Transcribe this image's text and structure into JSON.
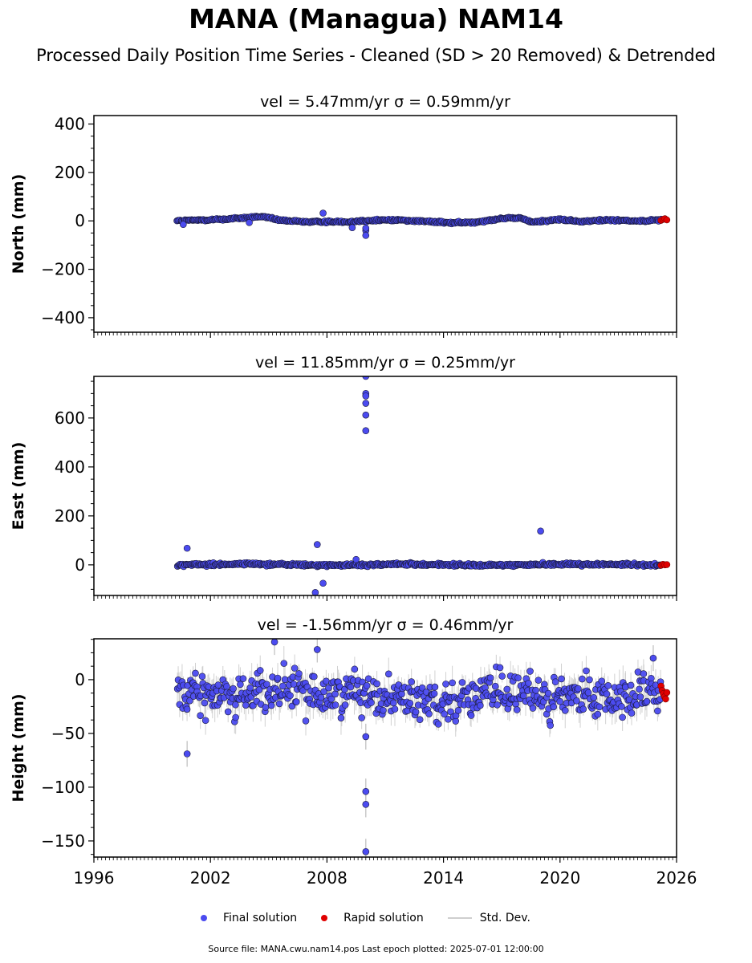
{
  "title": "MANA (Managua) NAM14",
  "subtitle": "Processed Daily Position Time Series - Cleaned (SD > 20 Removed) & Detrended",
  "legend": {
    "final": "Final solution",
    "rapid": "Rapid solution",
    "std": "Std. Dev."
  },
  "footer": "Source file: MANA.cwu.nam14.pos  Last epoch plotted: 2025-07-01 12:00:00",
  "colors": {
    "final": "#4b4bf0",
    "rapid": "#e00000",
    "std": "#bdbdbd"
  },
  "chart_data": [
    {
      "type": "scatter",
      "title": "vel = 5.47mm/yr   σ = 0.59mm/yr",
      "ylabel": "North (mm)",
      "xlim": [
        1996,
        2026
      ],
      "ylim": [
        -460,
        435
      ],
      "yticks": [
        400,
        200,
        0,
        -200,
        -400
      ],
      "ytick_labels": [
        "400",
        "200",
        "0",
        "−200",
        "−400"
      ],
      "xticks": [
        1996,
        2002,
        2008,
        2014,
        2020,
        2026
      ],
      "x_start": 2000.3,
      "x_end": 2025.2,
      "rapid_start": 2025.2,
      "rapid_end": 2025.5,
      "baseline": [
        [
          2000.3,
          0
        ],
        [
          2002,
          5
        ],
        [
          2003,
          8
        ],
        [
          2004.7,
          18
        ],
        [
          2005.5,
          3
        ],
        [
          2007,
          -4
        ],
        [
          2009,
          -3
        ],
        [
          2011,
          4
        ],
        [
          2012,
          3
        ],
        [
          2013,
          -2
        ],
        [
          2014.5,
          -8
        ],
        [
          2015.5,
          -6
        ],
        [
          2017,
          10
        ],
        [
          2018,
          12
        ],
        [
          2018.5,
          -5
        ],
        [
          2020,
          6
        ],
        [
          2021,
          -3
        ],
        [
          2022.5,
          4
        ],
        [
          2024,
          0
        ],
        [
          2025.5,
          5
        ]
      ],
      "scatter_amp": 3,
      "outliers": [
        [
          2000.6,
          -15
        ],
        [
          2004,
          -7
        ],
        [
          2007.8,
          32
        ],
        [
          2009.3,
          -28
        ],
        [
          2010,
          -40
        ],
        [
          2010,
          -60
        ],
        [
          2010,
          -30
        ]
      ],
      "rapid_values": [
        2,
        6,
        9,
        4
      ],
      "std_amp": 0
    },
    {
      "type": "scatter",
      "title": "vel = 11.85mm/yr   σ = 0.25mm/yr",
      "ylabel": "East (mm)",
      "xlim": [
        1996,
        2026
      ],
      "ylim": [
        -125,
        770
      ],
      "yticks": [
        600,
        400,
        200,
        0
      ],
      "ytick_labels": [
        "600",
        "400",
        "200",
        "0"
      ],
      "xticks": [
        1996,
        2002,
        2008,
        2014,
        2020,
        2026
      ],
      "x_start": 2000.3,
      "x_end": 2025.2,
      "rapid_start": 2025.2,
      "rapid_end": 2025.5,
      "baseline": [
        [
          2000.3,
          0
        ],
        [
          2004,
          4
        ],
        [
          2008,
          -2
        ],
        [
          2012,
          3
        ],
        [
          2016,
          -2
        ],
        [
          2020,
          3
        ],
        [
          2025.5,
          0
        ]
      ],
      "scatter_amp": 4,
      "outliers": [
        [
          2000.8,
          68
        ],
        [
          2007.5,
          83
        ],
        [
          2007.8,
          -75
        ],
        [
          2007.4,
          -113
        ],
        [
          2009.5,
          22
        ],
        [
          2010,
          770
        ],
        [
          2010,
          700
        ],
        [
          2010,
          690
        ],
        [
          2010,
          660
        ],
        [
          2010,
          612
        ],
        [
          2010,
          548
        ],
        [
          2019,
          138
        ]
      ],
      "rapid_values": [
        -2,
        2,
        0,
        1
      ],
      "std_amp": 0
    },
    {
      "type": "scatter",
      "title": "vel = -1.56mm/yr   σ = 0.46mm/yr",
      "ylabel": "Height (mm)",
      "xlim": [
        1996,
        2026
      ],
      "ylim": [
        -165,
        38
      ],
      "yticks": [
        0,
        -50,
        -100,
        -150
      ],
      "ytick_labels": [
        "0",
        "−50",
        "−100",
        "−150"
      ],
      "xticks": [
        1996,
        2002,
        2008,
        2014,
        2020,
        2026
      ],
      "xtick_labels": [
        "1996",
        "2002",
        "2008",
        "2014",
        "2020",
        "2026"
      ],
      "x_start": 2000.3,
      "x_end": 2025.2,
      "rapid_start": 2025.2,
      "rapid_end": 2025.5,
      "baseline": [
        [
          2000.3,
          -12
        ],
        [
          2002,
          -15
        ],
        [
          2004,
          -12
        ],
        [
          2006,
          -10
        ],
        [
          2008,
          -15
        ],
        [
          2009.5,
          -8
        ],
        [
          2010.5,
          -14
        ],
        [
          2012,
          -18
        ],
        [
          2014,
          -20
        ],
        [
          2016,
          -14
        ],
        [
          2018,
          -14
        ],
        [
          2020,
          -16
        ],
        [
          2022,
          -18
        ],
        [
          2024,
          -14
        ],
        [
          2025.5,
          -14
        ]
      ],
      "scatter_amp": 13,
      "outliers": [
        [
          2000.8,
          -69
        ],
        [
          2005.3,
          35
        ],
        [
          2007.5,
          28
        ],
        [
          2010,
          -53
        ],
        [
          2010,
          -104
        ],
        [
          2010,
          -116
        ],
        [
          2010,
          -160
        ],
        [
          2024.8,
          20
        ]
      ],
      "rapid_values": [
        -6,
        -10,
        -13,
        -16,
        -18,
        -12
      ],
      "std_amp": 11
    }
  ]
}
